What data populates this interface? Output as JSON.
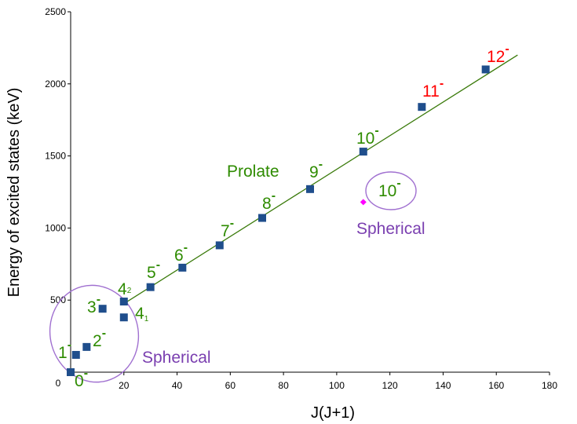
{
  "chart_data": {
    "type": "scatter",
    "xlabel": "J(J+1)",
    "ylabel": "Energy of excited states  (keV)",
    "xlim": [
      0,
      180
    ],
    "ylim": [
      0,
      2500
    ],
    "x_ticks": [
      "0",
      "20",
      "40",
      "60",
      "80",
      "100",
      "120",
      "140",
      "160",
      "180"
    ],
    "y_ticks": [
      "500",
      "1000",
      "1500",
      "2000",
      "2500"
    ],
    "grid": false,
    "series": [
      {
        "marker": "square",
        "color": "#1f4e8c",
        "points": [
          {
            "x": 0,
            "y": 0
          },
          {
            "x": 2,
            "y": 120
          },
          {
            "x": 6,
            "y": 175
          },
          {
            "x": 12,
            "y": 440
          },
          {
            "x": 20,
            "y": 380
          },
          {
            "x": 20,
            "y": 490
          },
          {
            "x": 30,
            "y": 590
          },
          {
            "x": 42,
            "y": 725
          },
          {
            "x": 56,
            "y": 880
          },
          {
            "x": 72,
            "y": 1070
          },
          {
            "x": 90,
            "y": 1270
          },
          {
            "x": 110,
            "y": 1530
          },
          {
            "x": 132,
            "y": 1840
          },
          {
            "x": 156,
            "y": 2100
          }
        ]
      },
      {
        "marker": "diamond",
        "color": "#ff00ff",
        "points": [
          {
            "x": 110,
            "y": 1180
          }
        ]
      }
    ],
    "fit_line": {
      "x": [
        20,
        168
      ],
      "y": [
        475,
        2200
      ],
      "color": "#3a7a0a"
    },
    "labels": {
      "l0": {
        "base": "0",
        "sup": "-"
      },
      "l1": {
        "base": "1",
        "sup": "-"
      },
      "l2": {
        "base": "2",
        "sup": "-"
      },
      "l3": {
        "base": "3",
        "sup": "-"
      },
      "l42": {
        "base": "4",
        "sub": "2"
      },
      "l41": {
        "base": "4",
        "sub": "1"
      },
      "l5": {
        "base": "5",
        "sup": "-"
      },
      "l6": {
        "base": "6",
        "sup": "-"
      },
      "l7": {
        "base": "7",
        "sup": "-"
      },
      "l8": {
        "base": "8",
        "sup": "-"
      },
      "l9": {
        "base": "9",
        "sup": "-"
      },
      "l10": {
        "base": "10",
        "sup": "-"
      },
      "l10s": {
        "base": "10",
        "sup": "-"
      },
      "l11": {
        "base": "11",
        "sup": "-"
      },
      "l12": {
        "base": "12",
        "sup": "-"
      }
    },
    "annotations": {
      "prolate": "Prolate",
      "spherical_low": "Spherical",
      "spherical_high": "Spherical"
    },
    "colors": {
      "green": "#2e8b00",
      "red": "#ff0000",
      "purple": "#7a3fb0",
      "circle": "#a070d0"
    }
  }
}
